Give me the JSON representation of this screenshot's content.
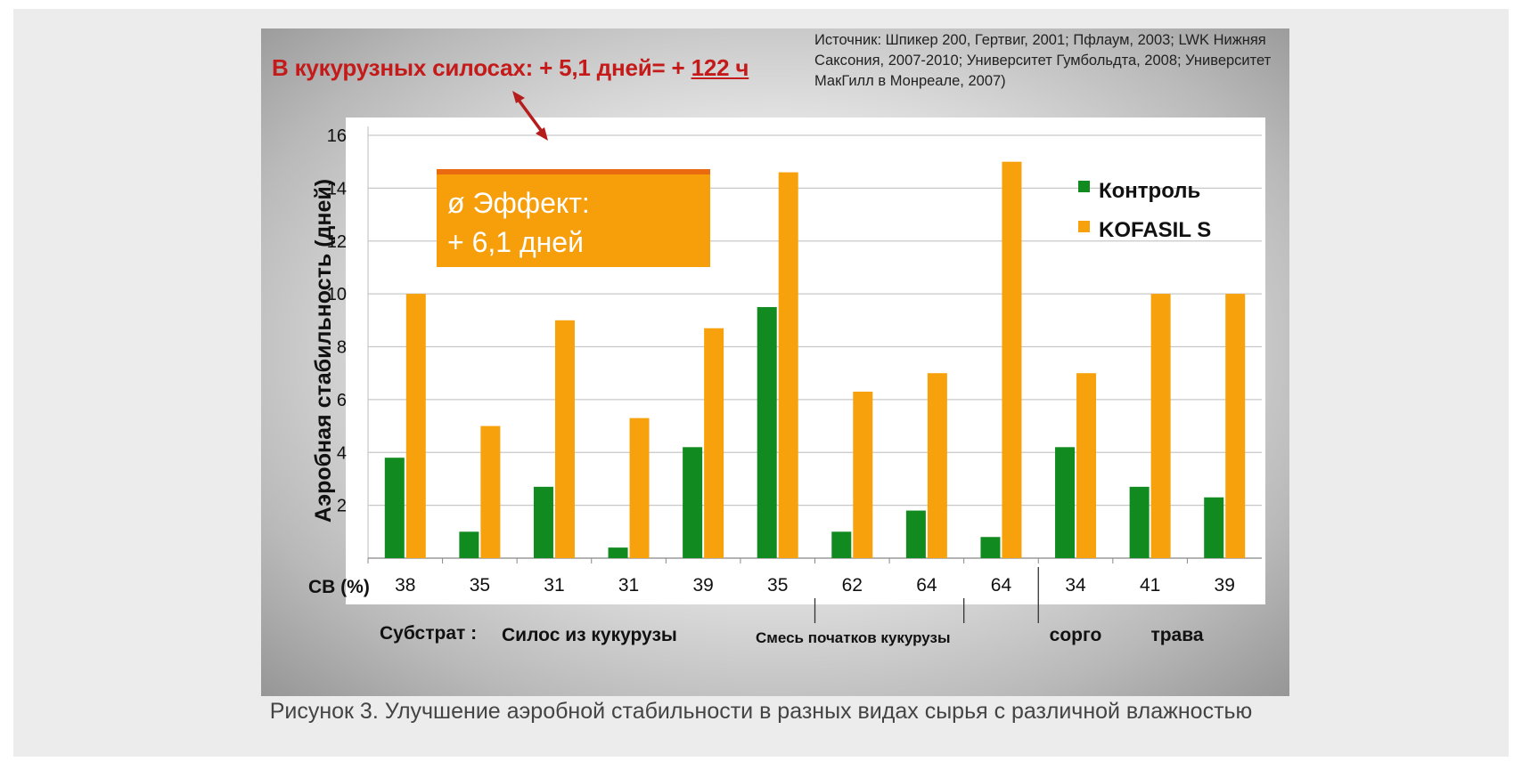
{
  "headline": {
    "prefix": "В кукурузных силосах: + 5,1 дней= + ",
    "hours": "122 ч"
  },
  "source_note": "Источник: Шпикер 200, Гертвиг, 2001; Пфлаум, 2003; LWK Нижняя Саксония, 2007-2010; Университет Гумбольдта, 2008; Университет МакГилл в Монреале, 2007)",
  "effect_box": {
    "line1": "ø Эффект:",
    "line2": "+ 6,1 дней"
  },
  "caption": "Рисунок 3. Улучшение аэробной стабильности в разных видах сырья с различной влажностью",
  "colors": {
    "control": "#118a1f",
    "kofasil": "#f7a20d",
    "headline": "#c41a1a",
    "effect_box": "#f79e0b",
    "effect_border": "#ea6a10"
  },
  "chart_data": {
    "type": "bar",
    "ylabel": "Аэробная стабильность (дней)",
    "xlabel": "СВ (%)",
    "ylim": [
      0,
      16
    ],
    "yticks": [
      2,
      4,
      6,
      8,
      10,
      12,
      14,
      16
    ],
    "grid": true,
    "legend_position": "top-right",
    "categories": [
      "38",
      "35",
      "31",
      "31",
      "39",
      "35",
      "62",
      "64",
      "64",
      "34",
      "41",
      "39"
    ],
    "series": [
      {
        "name": "Контроль",
        "values": [
          3.8,
          1.0,
          2.7,
          0.4,
          4.2,
          9.5,
          1.0,
          1.8,
          0.8,
          4.2,
          2.7,
          2.3
        ]
      },
      {
        "name": "KOFASIL S",
        "values": [
          10.0,
          5.0,
          9.0,
          5.3,
          8.7,
          14.6,
          6.3,
          7.0,
          15.0,
          7.0,
          10.0,
          10.0
        ]
      }
    ],
    "substrate_label": "Субстрат :",
    "substrate_groups": [
      {
        "label": "Силос из кукурузы",
        "first": 0,
        "last": 5
      },
      {
        "label": "Смесь початков кукурузы",
        "first": 6,
        "last": 8
      },
      {
        "label": "сорго",
        "first": 9,
        "last": 9
      },
      {
        "label": "трава",
        "first": 10,
        "last": 11
      }
    ]
  }
}
